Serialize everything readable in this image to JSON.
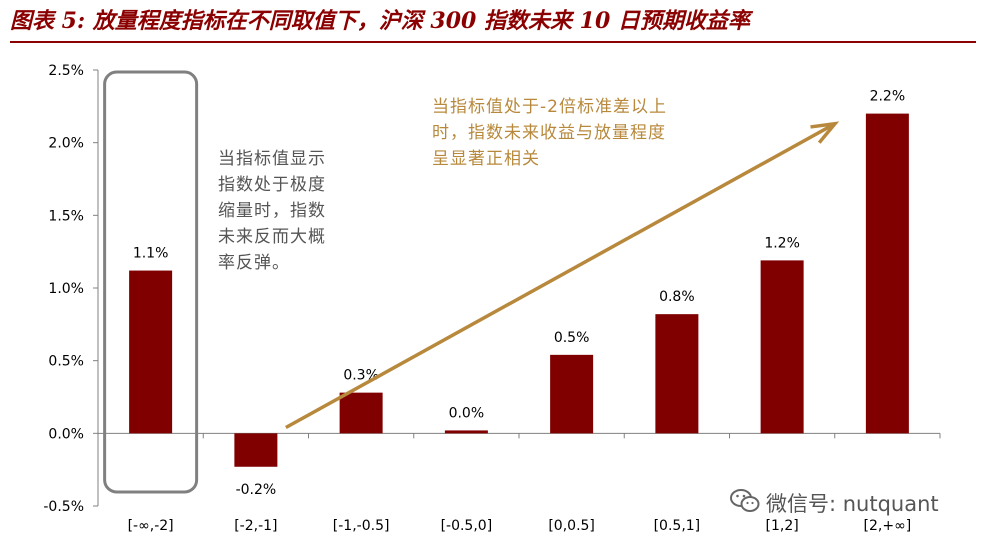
{
  "title": "图表 5: 放量程度指标在不同取值下，沪深 300 指数未来 10 日预期收益率",
  "annotations": {
    "left": "当指标值显示\n指数处于极度\n缩量时，指数\n未来反而大概\n率反弹。",
    "right": "当指标值处于-2倍标准差以上\n时，指数未来收益与放量程度\n呈显著正相关"
  },
  "watermark": "微信号: nutquant",
  "colors": {
    "bar": "#800000",
    "title": "#8b0000",
    "arrow": "#b8893c",
    "highlight_box": "#808080"
  },
  "chart_data": {
    "type": "bar",
    "categories": [
      "[-∞,-2]",
      "[-2,-1]",
      "[-1,-0.5]",
      "[-0.5,0]",
      "[0,0.5]",
      "[0.5,1]",
      "[1,2]",
      "[2,+∞]"
    ],
    "values": [
      0.0112,
      -0.0023,
      0.0028,
      0.0002,
      0.0054,
      0.0082,
      0.0119,
      0.022
    ],
    "data_labels": [
      "1.1%",
      "-0.2%",
      "0.3%",
      "0.0%",
      "0.5%",
      "0.8%",
      "1.2%",
      "2.2%"
    ],
    "yticks": [
      -0.005,
      0,
      0.005,
      0.01,
      0.015,
      0.02,
      0.025
    ],
    "ytick_labels": [
      "-0.5%",
      "0.0%",
      "0.5%",
      "1.0%",
      "1.5%",
      "2.0%",
      "2.5%"
    ],
    "ylim": [
      -0.005,
      0.025
    ],
    "grid": false,
    "legend": "none",
    "highlight_category": "[-∞,-2]",
    "trend_arrow": {
      "from_category": "[-2,-1]",
      "to_category": "[2,+∞]",
      "from_value": 0.0004,
      "to_value": 0.021
    }
  }
}
